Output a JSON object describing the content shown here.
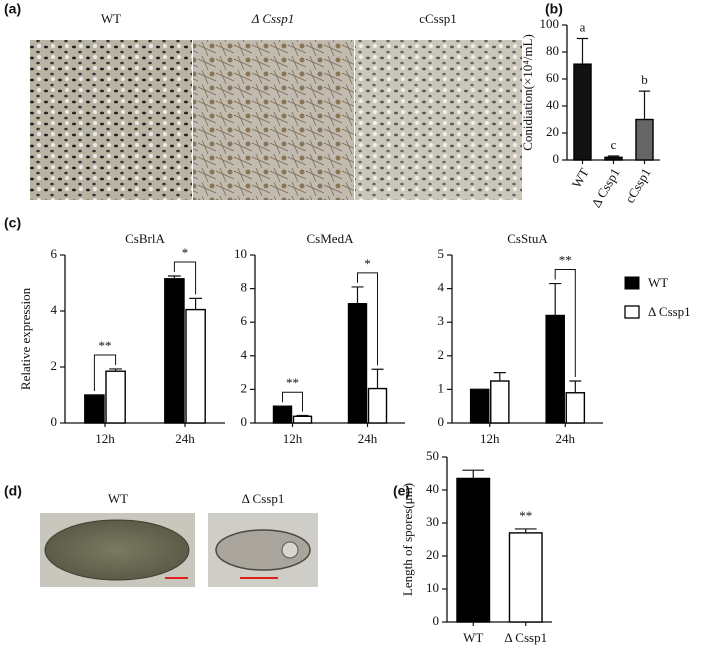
{
  "figure": {
    "panel_a": {
      "label": "(a)",
      "captions": [
        "WT",
        "Δ Cssp1",
        "cCssp1"
      ]
    },
    "panel_d": {
      "label": "(d)",
      "captions": [
        "WT",
        "Δ Cssp1"
      ]
    }
  },
  "chart_data": [
    {
      "type": "bar",
      "panel": "(b)",
      "ylabel": "Conidiation(×10⁴/mL)",
      "categories": [
        "WT",
        "Δ Cssp1",
        "cCssp1"
      ],
      "values": [
        71,
        2,
        30
      ],
      "errors": [
        19,
        1,
        21
      ],
      "colors": [
        "#111111",
        "#111111",
        "#666666"
      ],
      "annotations": [
        "a",
        "c",
        "b"
      ],
      "ylim": [
        0,
        100
      ],
      "yticks": [
        0,
        20,
        40,
        60,
        80,
        100
      ]
    },
    {
      "type": "bar",
      "panel": "(c)",
      "title": "CsBrlA",
      "ylabel": "Relative expression",
      "categories": [
        "12h",
        "24h"
      ],
      "series": [
        {
          "name": "WT",
          "color": "#000000",
          "values": [
            1,
            5.15
          ],
          "errors": [
            0,
            0.1
          ]
        },
        {
          "name": "Δ Cssp1",
          "color": "#ffffff",
          "values": [
            1.85,
            4.05
          ],
          "errors": [
            0.08,
            0.4
          ]
        }
      ],
      "significance": [
        "**",
        "*"
      ],
      "ylim": [
        0,
        6
      ],
      "yticks": [
        0,
        2,
        4,
        6
      ]
    },
    {
      "type": "bar",
      "title": "CsMedA",
      "categories": [
        "12h",
        "24h"
      ],
      "series": [
        {
          "color": "#000000",
          "values": [
            1,
            7.1
          ],
          "errors": [
            0,
            1
          ]
        },
        {
          "color": "#ffffff",
          "values": [
            0.4,
            2.05
          ],
          "errors": [
            0.05,
            1.15
          ]
        }
      ],
      "significance": [
        "**",
        "*"
      ],
      "ylim": [
        0,
        10
      ],
      "yticks": [
        0,
        2,
        4,
        6,
        8,
        10
      ]
    },
    {
      "type": "bar",
      "title": "CsStuA",
      "categories": [
        "12h",
        "24h"
      ],
      "series": [
        {
          "color": "#000000",
          "values": [
            1,
            3.2
          ],
          "errors": [
            0,
            0.95
          ]
        },
        {
          "color": "#ffffff",
          "values": [
            1.25,
            0.9
          ],
          "errors": [
            0.25,
            0.35
          ]
        }
      ],
      "significance": [
        null,
        "**"
      ],
      "ylim": [
        0,
        5
      ],
      "yticks": [
        0,
        1,
        2,
        3,
        4,
        5
      ]
    },
    {
      "type": "bar",
      "panel": "(e)",
      "ylabel": "Length of spores(μm)",
      "categories": [
        "WT",
        "Δ Cssp1"
      ],
      "values": [
        43.5,
        27
      ],
      "errors": [
        2.5,
        1.2
      ],
      "colors": [
        "#000000",
        "#ffffff"
      ],
      "significance": [
        null,
        "**"
      ],
      "ylim": [
        0,
        50
      ],
      "yticks": [
        0,
        10,
        20,
        30,
        40,
        50
      ]
    }
  ]
}
